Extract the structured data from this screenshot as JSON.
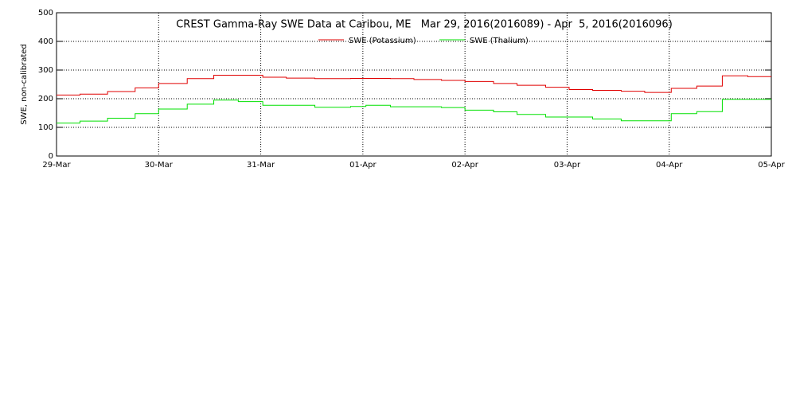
{
  "chart_data": {
    "type": "line",
    "title": "CREST Gamma-Ray SWE Data at Caribou, ME   Mar 29, 2016(2016089) - Apr  5, 2016(2016096)",
    "ylabel": "SWE, non-calibrated",
    "xlim": [
      0,
      7
    ],
    "xticks": [
      {
        "value": 0,
        "label": "29-Mar"
      },
      {
        "value": 1,
        "label": "30-Mar"
      },
      {
        "value": 2,
        "label": "31-Mar"
      },
      {
        "value": 3,
        "label": "01-Apr"
      },
      {
        "value": 4,
        "label": "02-Apr"
      },
      {
        "value": 5,
        "label": "03-Apr"
      },
      {
        "value": 6,
        "label": "04-Apr"
      },
      {
        "value": 7,
        "label": "05-Apr"
      }
    ],
    "ylim": [
      0,
      500
    ],
    "yticks": [
      0,
      100,
      200,
      300,
      400,
      500
    ],
    "grid": true,
    "legend": "top",
    "series": [
      {
        "name": "SWE (Potassium)",
        "color": "#e00000",
        "x": [
          0,
          0.23,
          0.23,
          0.5,
          0.5,
          0.77,
          0.77,
          1.0,
          1.0,
          1.28,
          1.28,
          1.54,
          1.54,
          2.02,
          2.02,
          2.25,
          2.25,
          2.53,
          2.53,
          2.88,
          2.88,
          3.27,
          3.27,
          3.5,
          3.5,
          3.77,
          3.77,
          4.0,
          4.0,
          4.28,
          4.28,
          4.51,
          4.51,
          4.79,
          4.79,
          5.02,
          5.02,
          5.25,
          5.25,
          5.53,
          5.53,
          5.76,
          5.76,
          6.02,
          6.02,
          6.27,
          6.27,
          6.52,
          6.52,
          6.77,
          6.77,
          7
        ],
        "values": [
          213,
          213,
          216,
          216,
          225,
          225,
          238,
          238,
          253,
          253,
          270,
          270,
          282,
          282,
          275,
          275,
          272,
          272,
          270,
          270,
          271,
          271,
          270,
          270,
          267,
          267,
          264,
          264,
          260,
          260,
          253,
          253,
          247,
          247,
          240,
          240,
          232,
          232,
          229,
          229,
          226,
          226,
          222,
          222,
          236,
          236,
          244,
          244,
          280,
          280,
          277,
          277
        ]
      },
      {
        "name": "SWE (Thalium)",
        "color": "#00e000",
        "x": [
          0,
          0.23,
          0.23,
          0.5,
          0.5,
          0.77,
          0.77,
          1.0,
          1.0,
          1.28,
          1.28,
          1.54,
          1.54,
          1.78,
          1.78,
          2.02,
          2.02,
          2.53,
          2.53,
          2.88,
          2.88,
          3.03,
          3.03,
          3.27,
          3.27,
          3.77,
          3.77,
          4.0,
          4.0,
          4.28,
          4.28,
          4.51,
          4.51,
          4.79,
          4.79,
          5.25,
          5.25,
          5.53,
          5.53,
          6.02,
          6.02,
          6.27,
          6.27,
          6.52,
          6.52,
          7
        ],
        "values": [
          115,
          115,
          122,
          122,
          132,
          132,
          148,
          148,
          164,
          164,
          181,
          181,
          195,
          195,
          190,
          190,
          177,
          177,
          170,
          170,
          173,
          173,
          177,
          177,
          172,
          172,
          169,
          169,
          160,
          160,
          154,
          154,
          145,
          145,
          136,
          136,
          129,
          129,
          123,
          123,
          148,
          148,
          155,
          155,
          198,
          198
        ]
      }
    ]
  }
}
